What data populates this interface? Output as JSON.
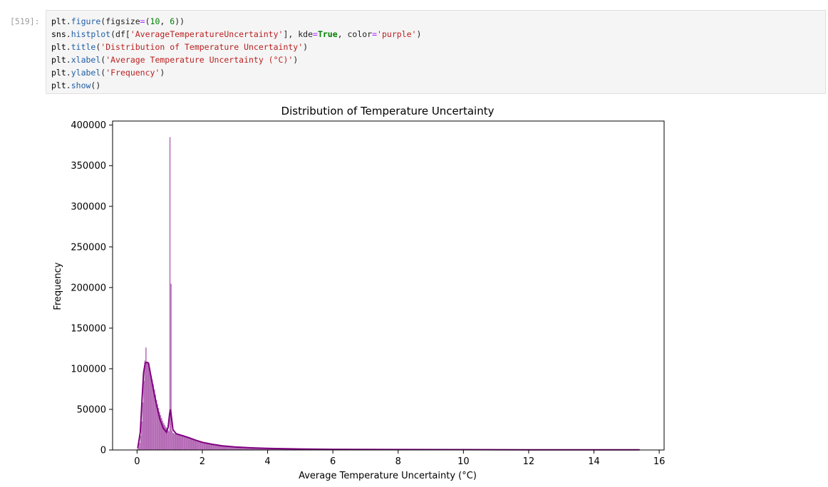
{
  "cell": {
    "prompt": "[519]:",
    "code_lines": [
      [
        {
          "t": "plt",
          "c": "var"
        },
        {
          "t": ".",
          "c": "op"
        },
        {
          "t": "figure",
          "c": "fn"
        },
        {
          "t": "(figsize",
          "c": "op"
        },
        {
          "t": "=",
          "c": "eq"
        },
        {
          "t": "(",
          "c": "op"
        },
        {
          "t": "10",
          "c": "num"
        },
        {
          "t": ", ",
          "c": "op"
        },
        {
          "t": "6",
          "c": "num"
        },
        {
          "t": "))",
          "c": "op"
        }
      ],
      [
        {
          "t": "sns",
          "c": "var"
        },
        {
          "t": ".",
          "c": "op"
        },
        {
          "t": "histplot",
          "c": "fn"
        },
        {
          "t": "(df[",
          "c": "op"
        },
        {
          "t": "'AverageTemperatureUncertainty'",
          "c": "str"
        },
        {
          "t": "], kde",
          "c": "op"
        },
        {
          "t": "=",
          "c": "eq"
        },
        {
          "t": "True",
          "c": "kw"
        },
        {
          "t": ", color",
          "c": "op"
        },
        {
          "t": "=",
          "c": "eq"
        },
        {
          "t": "'purple'",
          "c": "str"
        },
        {
          "t": ")",
          "c": "op"
        }
      ],
      [
        {
          "t": "plt",
          "c": "var"
        },
        {
          "t": ".",
          "c": "op"
        },
        {
          "t": "title",
          "c": "fn"
        },
        {
          "t": "(",
          "c": "op"
        },
        {
          "t": "'Distribution of Temperature Uncertainty'",
          "c": "str"
        },
        {
          "t": ")",
          "c": "op"
        }
      ],
      [
        {
          "t": "plt",
          "c": "var"
        },
        {
          "t": ".",
          "c": "op"
        },
        {
          "t": "xlabel",
          "c": "fn"
        },
        {
          "t": "(",
          "c": "op"
        },
        {
          "t": "'Average Temperature Uncertainty (°C)'",
          "c": "str"
        },
        {
          "t": ")",
          "c": "op"
        }
      ],
      [
        {
          "t": "plt",
          "c": "var"
        },
        {
          "t": ".",
          "c": "op"
        },
        {
          "t": "ylabel",
          "c": "fn"
        },
        {
          "t": "(",
          "c": "op"
        },
        {
          "t": "'Frequency'",
          "c": "str"
        },
        {
          "t": ")",
          "c": "op"
        }
      ],
      [
        {
          "t": "plt",
          "c": "var"
        },
        {
          "t": ".",
          "c": "op"
        },
        {
          "t": "show",
          "c": "fn"
        },
        {
          "t": "()",
          "c": "op"
        }
      ]
    ]
  },
  "chart_data": {
    "type": "bar",
    "title": "Distribution of Temperature Uncertainty",
    "xlabel": "Average Temperature Uncertainty (°C)",
    "ylabel": "Frequency",
    "xlim": [
      -0.75,
      16.15
    ],
    "ylim": [
      0,
      405000
    ],
    "xticks": [
      0,
      2,
      4,
      6,
      8,
      10,
      12,
      14,
      16
    ],
    "yticks": [
      0,
      50000,
      100000,
      150000,
      200000,
      250000,
      300000,
      350000,
      400000
    ],
    "grid": false,
    "legend": "none",
    "color": "#800080",
    "bar_fill_opacity": 0.5,
    "histogram_bin_width": 0.032,
    "histogram_points": [
      {
        "x": 0.0,
        "y": 0
      },
      {
        "x": 0.05,
        "y": 3000
      },
      {
        "x": 0.1,
        "y": 12000
      },
      {
        "x": 0.15,
        "y": 35000
      },
      {
        "x": 0.2,
        "y": 80000
      },
      {
        "x": 0.25,
        "y": 110000
      },
      {
        "x": 0.27,
        "y": 126000
      },
      {
        "x": 0.3,
        "y": 108000
      },
      {
        "x": 0.35,
        "y": 106000
      },
      {
        "x": 0.4,
        "y": 97000
      },
      {
        "x": 0.5,
        "y": 80000
      },
      {
        "x": 0.6,
        "y": 60000
      },
      {
        "x": 0.7,
        "y": 45000
      },
      {
        "x": 0.8,
        "y": 34000
      },
      {
        "x": 0.9,
        "y": 27000
      },
      {
        "x": 0.95,
        "y": 24000
      },
      {
        "x": 1.0,
        "y": 22000
      },
      {
        "x": 1.02,
        "y": 385000
      },
      {
        "x": 1.06,
        "y": 24000
      },
      {
        "x": 1.1,
        "y": 21000
      },
      {
        "x": 1.2,
        "y": 19000
      },
      {
        "x": 1.4,
        "y": 17000
      },
      {
        "x": 1.6,
        "y": 14500
      },
      {
        "x": 1.8,
        "y": 11000
      },
      {
        "x": 2.0,
        "y": 9000
      },
      {
        "x": 2.3,
        "y": 6500
      },
      {
        "x": 2.6,
        "y": 5000
      },
      {
        "x": 3.0,
        "y": 3500
      },
      {
        "x": 3.5,
        "y": 2500
      },
      {
        "x": 4.0,
        "y": 1800
      },
      {
        "x": 5.0,
        "y": 1000
      },
      {
        "x": 6.0,
        "y": 700
      },
      {
        "x": 8.0,
        "y": 400
      },
      {
        "x": 10.0,
        "y": 250
      },
      {
        "x": 12.0,
        "y": 150
      },
      {
        "x": 14.0,
        "y": 80
      },
      {
        "x": 15.4,
        "y": 30
      }
    ],
    "kde_points": [
      [
        0.02,
        2000
      ],
      [
        0.1,
        22000
      ],
      [
        0.15,
        60000
      ],
      [
        0.2,
        95000
      ],
      [
        0.25,
        107000
      ],
      [
        0.3,
        108000
      ],
      [
        0.35,
        107000
      ],
      [
        0.4,
        96000
      ],
      [
        0.5,
        75000
      ],
      [
        0.6,
        55000
      ],
      [
        0.7,
        38000
      ],
      [
        0.8,
        27000
      ],
      [
        0.9,
        22000
      ],
      [
        0.95,
        28000
      ],
      [
        1.0,
        45000
      ],
      [
        1.02,
        50000
      ],
      [
        1.05,
        42000
      ],
      [
        1.1,
        25000
      ],
      [
        1.2,
        20000
      ],
      [
        1.4,
        17500
      ],
      [
        1.6,
        15000
      ],
      [
        1.8,
        12000
      ],
      [
        2.0,
        9500
      ],
      [
        2.3,
        7000
      ],
      [
        2.6,
        5200
      ],
      [
        3.0,
        3800
      ],
      [
        3.5,
        2600
      ],
      [
        4.0,
        1900
      ],
      [
        5.0,
        1200
      ],
      [
        6.0,
        800
      ],
      [
        8.0,
        500
      ],
      [
        10.0,
        400
      ],
      [
        12.0,
        300
      ],
      [
        14.0,
        250
      ],
      [
        15.4,
        200
      ]
    ]
  }
}
